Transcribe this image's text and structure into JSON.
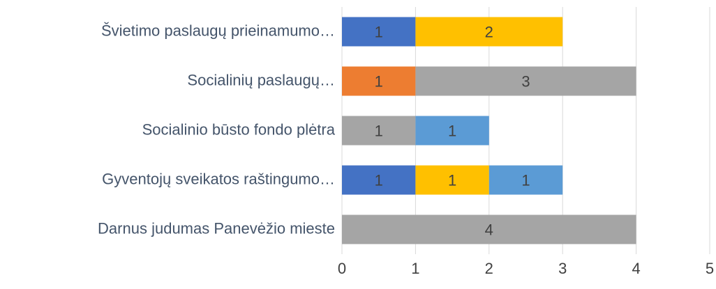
{
  "chart_data": {
    "type": "stacked-barh",
    "categories": [
      "Švietimo paslaugų prieinamumo…",
      "Socialinių paslaugų…",
      "Socialinio būsto fondo plėtra",
      "Gyventojų sveikatos raštingumo…",
      "Darnus judumas Panevėžio mieste"
    ],
    "series": [
      {
        "color": "#4472c4",
        "values": [
          1,
          null,
          null,
          1,
          null
        ]
      },
      {
        "color": "#ed7d31",
        "values": [
          null,
          1,
          null,
          null,
          null
        ]
      },
      {
        "color": "#a5a5a5",
        "values": [
          null,
          3,
          1,
          null,
          4
        ]
      },
      {
        "color": "#ffc000",
        "values": [
          2,
          null,
          null,
          1,
          null
        ]
      },
      {
        "color": "#5b9bd5",
        "values": [
          null,
          null,
          1,
          1,
          null
        ]
      }
    ],
    "xlim": [
      0,
      5
    ],
    "xticks": [
      0,
      1,
      2,
      3,
      4,
      5
    ],
    "grid": true
  }
}
